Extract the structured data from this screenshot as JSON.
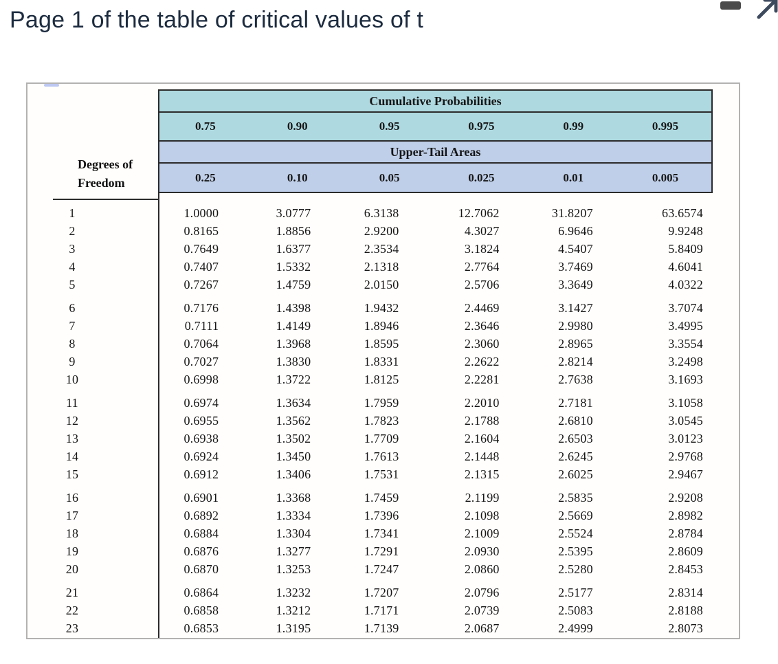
{
  "page": {
    "title": "Page 1 of the table of critical values of t"
  },
  "window_controls": {
    "minimize_icon": "minimize-dash",
    "expand_icon": "expand-arrow"
  },
  "table": {
    "cumulative_header": "Cumulative Probabilities",
    "upper_tail_header": "Upper-Tail Areas",
    "df_label_line1": "Degrees of",
    "df_label_line2": "Freedom",
    "cumulative_probs": [
      "0.75",
      "0.90",
      "0.95",
      "0.975",
      "0.99",
      "0.995"
    ],
    "upper_tail_areas": [
      "0.25",
      "0.10",
      "0.05",
      "0.025",
      "0.01",
      "0.005"
    ],
    "rows": [
      {
        "df": "1",
        "values": [
          "1.0000",
          "3.0777",
          "6.3138",
          "12.7062",
          "31.8207",
          "63.6574"
        ]
      },
      {
        "df": "2",
        "values": [
          "0.8165",
          "1.8856",
          "2.9200",
          "4.3027",
          "6.9646",
          "9.9248"
        ]
      },
      {
        "df": "3",
        "values": [
          "0.7649",
          "1.6377",
          "2.3534",
          "3.1824",
          "4.5407",
          "5.8409"
        ]
      },
      {
        "df": "4",
        "values": [
          "0.7407",
          "1.5332",
          "2.1318",
          "2.7764",
          "3.7469",
          "4.6041"
        ]
      },
      {
        "df": "5",
        "values": [
          "0.7267",
          "1.4759",
          "2.0150",
          "2.5706",
          "3.3649",
          "4.0322"
        ]
      },
      {
        "df": "6",
        "values": [
          "0.7176",
          "1.4398",
          "1.9432",
          "2.4469",
          "3.1427",
          "3.7074"
        ]
      },
      {
        "df": "7",
        "values": [
          "0.7111",
          "1.4149",
          "1.8946",
          "2.3646",
          "2.9980",
          "3.4995"
        ]
      },
      {
        "df": "8",
        "values": [
          "0.7064",
          "1.3968",
          "1.8595",
          "2.3060",
          "2.8965",
          "3.3554"
        ]
      },
      {
        "df": "9",
        "values": [
          "0.7027",
          "1.3830",
          "1.8331",
          "2.2622",
          "2.8214",
          "3.2498"
        ]
      },
      {
        "df": "10",
        "values": [
          "0.6998",
          "1.3722",
          "1.8125",
          "2.2281",
          "2.7638",
          "3.1693"
        ]
      },
      {
        "df": "11",
        "values": [
          "0.6974",
          "1.3634",
          "1.7959",
          "2.2010",
          "2.7181",
          "3.1058"
        ]
      },
      {
        "df": "12",
        "values": [
          "0.6955",
          "1.3562",
          "1.7823",
          "2.1788",
          "2.6810",
          "3.0545"
        ]
      },
      {
        "df": "13",
        "values": [
          "0.6938",
          "1.3502",
          "1.7709",
          "2.1604",
          "2.6503",
          "3.0123"
        ]
      },
      {
        "df": "14",
        "values": [
          "0.6924",
          "1.3450",
          "1.7613",
          "2.1448",
          "2.6245",
          "2.9768"
        ]
      },
      {
        "df": "15",
        "values": [
          "0.6912",
          "1.3406",
          "1.7531",
          "2.1315",
          "2.6025",
          "2.9467"
        ]
      },
      {
        "df": "16",
        "values": [
          "0.6901",
          "1.3368",
          "1.7459",
          "2.1199",
          "2.5835",
          "2.9208"
        ]
      },
      {
        "df": "17",
        "values": [
          "0.6892",
          "1.3334",
          "1.7396",
          "2.1098",
          "2.5669",
          "2.8982"
        ]
      },
      {
        "df": "18",
        "values": [
          "0.6884",
          "1.3304",
          "1.7341",
          "2.1009",
          "2.5524",
          "2.8784"
        ]
      },
      {
        "df": "19",
        "values": [
          "0.6876",
          "1.3277",
          "1.7291",
          "2.0930",
          "2.5395",
          "2.8609"
        ]
      },
      {
        "df": "20",
        "values": [
          "0.6870",
          "1.3253",
          "1.7247",
          "2.0860",
          "2.5280",
          "2.8453"
        ]
      },
      {
        "df": "21",
        "values": [
          "0.6864",
          "1.3232",
          "1.7207",
          "2.0796",
          "2.5177",
          "2.8314"
        ]
      },
      {
        "df": "22",
        "values": [
          "0.6858",
          "1.3212",
          "1.7171",
          "2.0739",
          "2.5083",
          "2.8188"
        ]
      },
      {
        "df": "23",
        "values": [
          "0.6853",
          "1.3195",
          "1.7139",
          "2.0687",
          "2.4999",
          "2.8073"
        ]
      }
    ]
  },
  "colors": {
    "header_cyan": "#aed9e0",
    "header_blue": "#bfcfe9",
    "table_border": "#2b2b2b",
    "panel_border": "#b3b2b1",
    "title_text": "#1c2b3f",
    "minimize_icon": "#4a4a4a",
    "expand_icon": "#3d4a5e"
  }
}
